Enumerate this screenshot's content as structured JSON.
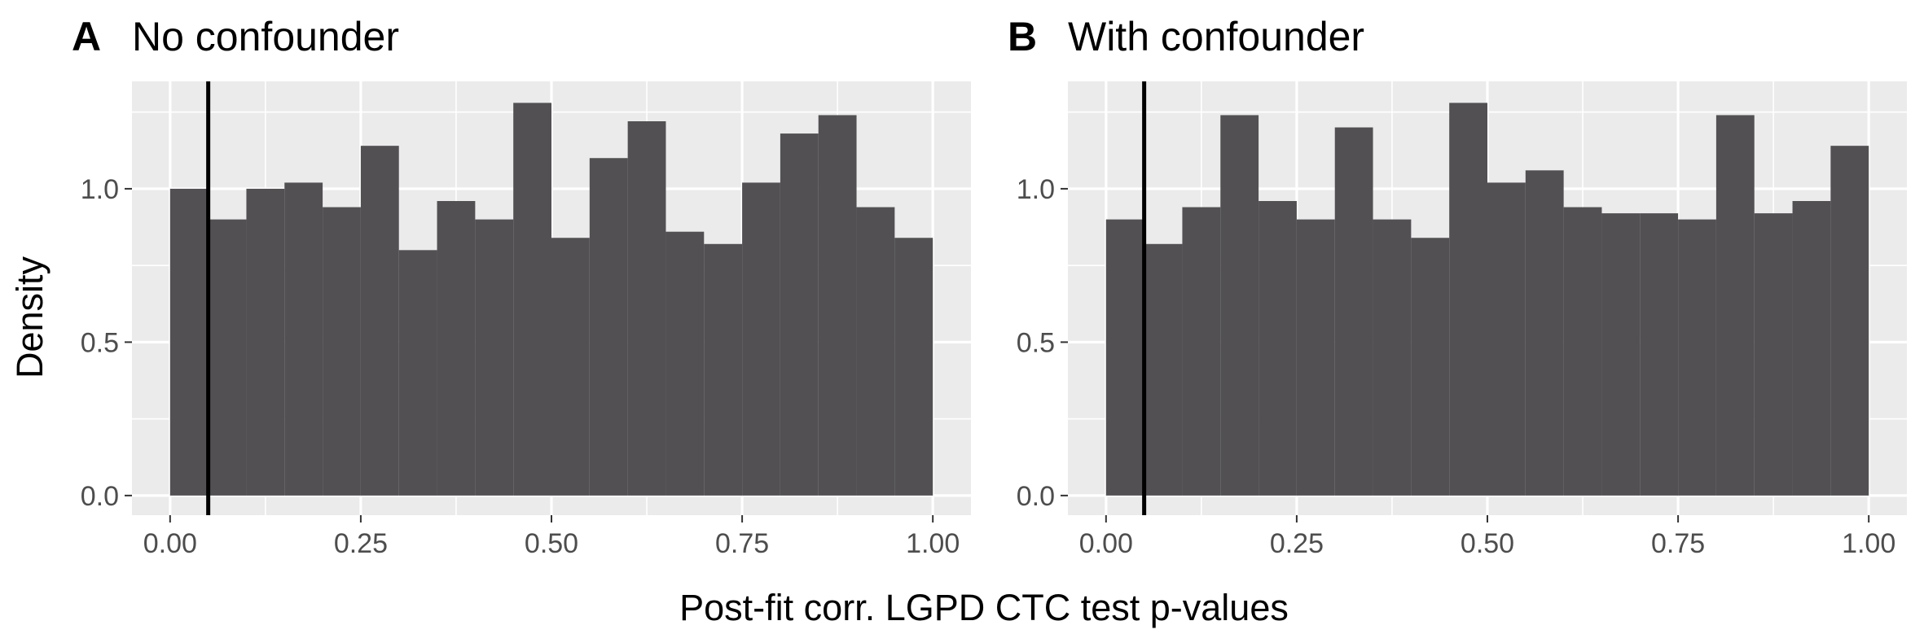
{
  "figure": {
    "ylabel": "Density",
    "xlabel": "Post-fit corr. LGPD CTC test p-values"
  },
  "chart_data": [
    {
      "type": "bar",
      "tag": "A",
      "title": "No confounder",
      "xlabel": "Post-fit corr. LGPD CTC test p-values",
      "ylabel": "Density",
      "xlim": [
        -0.05,
        1.05
      ],
      "ylim": [
        -0.064,
        1.35
      ],
      "bin_edges": [
        0,
        0.05,
        0.1,
        0.15,
        0.2,
        0.25,
        0.3,
        0.35,
        0.4,
        0.45,
        0.5,
        0.55,
        0.6,
        0.65,
        0.7,
        0.75,
        0.8,
        0.85,
        0.9,
        0.95,
        1.0
      ],
      "values": [
        1.0,
        0.9,
        1.0,
        1.02,
        0.94,
        1.14,
        0.8,
        0.96,
        0.9,
        1.28,
        0.84,
        1.1,
        1.22,
        0.86,
        0.82,
        1.02,
        1.18,
        1.24,
        0.94,
        0.84
      ],
      "vline": 0.05,
      "xticks": [
        "0.00",
        "0.25",
        "0.50",
        "0.75",
        "1.00"
      ],
      "xtick_values": [
        0,
        0.25,
        0.5,
        0.75,
        1.0
      ],
      "yticks": [
        "0.0",
        "0.5",
        "1.0"
      ],
      "ytick_values": [
        0,
        0.5,
        1.0
      ],
      "bar_color": "#525053",
      "panel_bg": "#ebebeb",
      "grid_color": "#ffffff",
      "grid": true
    },
    {
      "type": "bar",
      "tag": "B",
      "title": "With confounder",
      "xlabel": "Post-fit corr. LGPD CTC test p-values",
      "ylabel": "Density",
      "xlim": [
        -0.05,
        1.05
      ],
      "ylim": [
        -0.064,
        1.35
      ],
      "bin_edges": [
        0,
        0.05,
        0.1,
        0.15,
        0.2,
        0.25,
        0.3,
        0.35,
        0.4,
        0.45,
        0.5,
        0.55,
        0.6,
        0.65,
        0.7,
        0.75,
        0.8,
        0.85,
        0.9,
        0.95,
        1.0
      ],
      "values": [
        0.9,
        0.82,
        0.94,
        1.24,
        0.96,
        0.9,
        1.2,
        0.9,
        0.84,
        1.28,
        1.02,
        1.06,
        0.94,
        0.92,
        0.92,
        0.9,
        1.24,
        0.92,
        0.96,
        1.14
      ],
      "vline": 0.05,
      "xticks": [
        "0.00",
        "0.25",
        "0.50",
        "0.75",
        "1.00"
      ],
      "xtick_values": [
        0,
        0.25,
        0.5,
        0.75,
        1.0
      ],
      "yticks": [
        "0.0",
        "0.5",
        "1.0"
      ],
      "ytick_values": [
        0,
        0.5,
        1.0
      ],
      "bar_color": "#525053",
      "panel_bg": "#ebebeb",
      "grid_color": "#ffffff",
      "grid": true
    }
  ]
}
